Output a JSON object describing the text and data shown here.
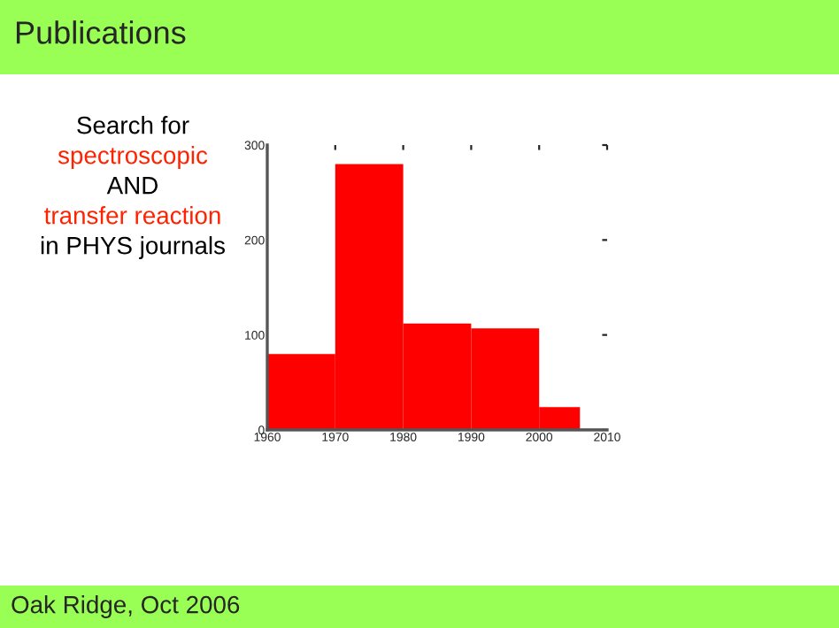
{
  "chart_data": {
    "type": "histogram",
    "title": "Publications",
    "bins": [
      1960,
      1970,
      1980,
      1990,
      2000,
      2006
    ],
    "values": [
      80,
      280,
      112,
      107,
      24
    ],
    "color": "#ff0000",
    "xlim": [
      1960,
      2010
    ],
    "xticks": [
      1960,
      1970,
      1980,
      1990,
      2000,
      2010
    ],
    "ylim": [
      0,
      300
    ],
    "yticks": [
      0,
      100,
      200,
      300
    ],
    "grid": false,
    "legend": false,
    "annotations": [
      "Search for",
      "spectroscopic",
      "AND",
      "transfer reaction",
      "in PHYS journals",
      "Oak Ridge, Oct 2006"
    ]
  }
}
